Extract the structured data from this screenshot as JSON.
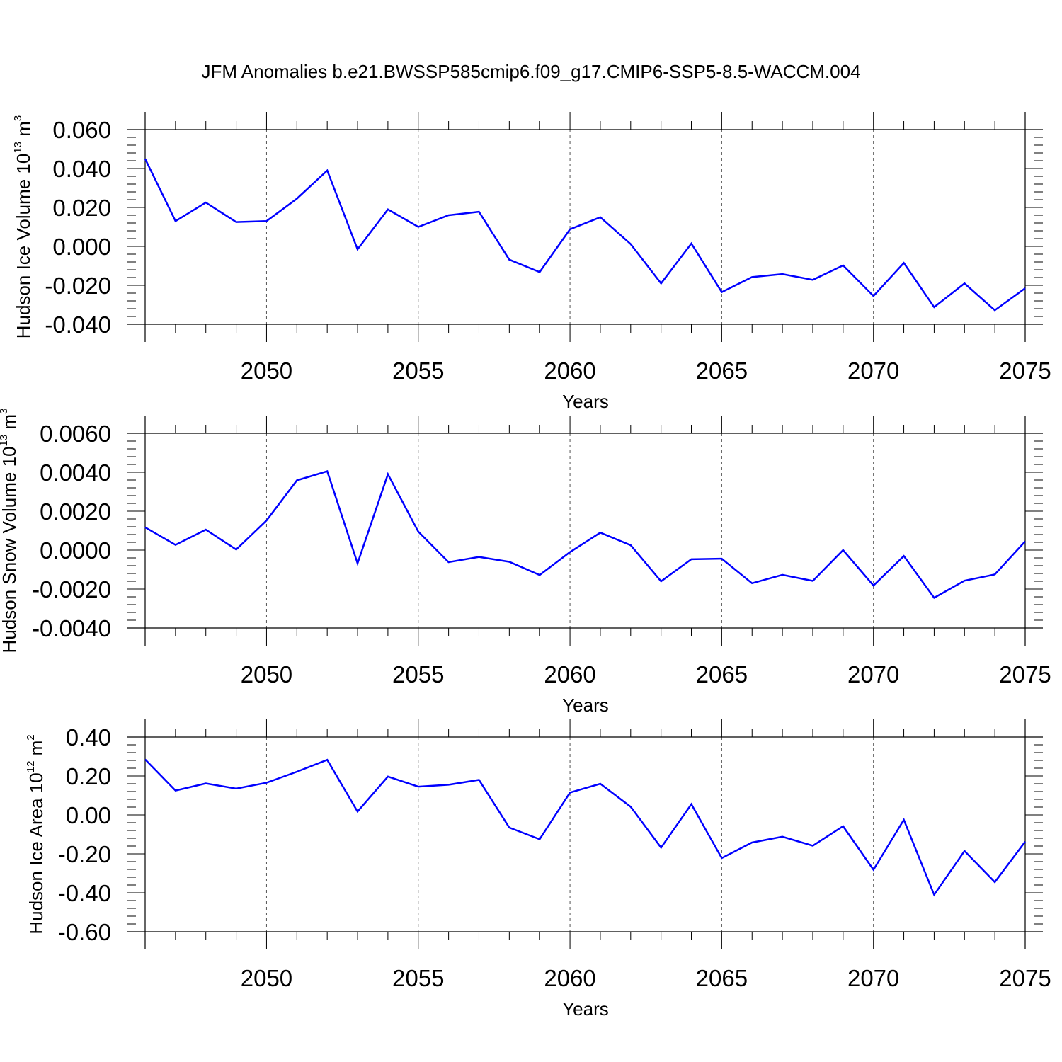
{
  "title": "JFM Anomalies b.e21.BWSSP585cmip6.f09_g17.CMIP6-SSP5-8.5-WACCM.004",
  "line_color": "#0000ff",
  "chart_data": [
    {
      "type": "line",
      "ylabel": "Hudson Ice Volume",
      "yunit_base": "10",
      "yunit_exp": "13",
      "yunit_suffix": "m",
      "yunit_suffix_exp": "3",
      "xlabel": "Years",
      "xlim": [
        2046,
        2075
      ],
      "ylim": [
        -0.04,
        0.06
      ],
      "yticks": [
        0.06,
        0.04,
        0.02,
        0.0,
        -0.02,
        -0.04
      ],
      "ytick_labels": [
        "0.060",
        "0.040",
        "0.020",
        "0.000",
        "-0.020",
        "-0.040"
      ],
      "xticks": [
        2050,
        2055,
        2060,
        2065,
        2070,
        2075
      ],
      "xtick_labels": [
        "2050",
        "2055",
        "2060",
        "2065",
        "2070",
        "2075"
      ],
      "x": [
        2046,
        2047,
        2048,
        2049,
        2050,
        2051,
        2052,
        2053,
        2054,
        2055,
        2056,
        2057,
        2058,
        2059,
        2060,
        2061,
        2062,
        2063,
        2064,
        2065,
        2066,
        2067,
        2068,
        2069,
        2070,
        2071,
        2072,
        2073,
        2074,
        2075
      ],
      "y": [
        0.045,
        0.013,
        0.0225,
        0.0125,
        0.013,
        0.0245,
        0.039,
        -0.0015,
        0.019,
        0.01,
        0.016,
        0.0178,
        -0.0068,
        -0.0132,
        0.0088,
        0.015,
        0.0012,
        -0.019,
        0.0015,
        -0.0235,
        -0.0158,
        -0.0142,
        -0.0172,
        -0.0098,
        -0.0255,
        -0.0085,
        -0.0312,
        -0.019,
        -0.0328,
        -0.0215
      ]
    },
    {
      "type": "line",
      "ylabel": "Hudson Snow Volume",
      "yunit_base": "10",
      "yunit_exp": "13",
      "yunit_suffix": "m",
      "yunit_suffix_exp": "3",
      "xlabel": "Years",
      "xlim": [
        2046,
        2075
      ],
      "ylim": [
        -0.004,
        0.006
      ],
      "yticks": [
        0.006,
        0.004,
        0.002,
        0.0,
        -0.002,
        -0.004
      ],
      "ytick_labels": [
        "0.0060",
        "0.0040",
        "0.0020",
        "0.0000",
        "-0.0020",
        "-0.0040"
      ],
      "xticks": [
        2050,
        2055,
        2060,
        2065,
        2070,
        2075
      ],
      "xtick_labels": [
        "2050",
        "2055",
        "2060",
        "2065",
        "2070",
        "2075"
      ],
      "x": [
        2046,
        2047,
        2048,
        2049,
        2050,
        2051,
        2052,
        2053,
        2054,
        2055,
        2056,
        2057,
        2058,
        2059,
        2060,
        2061,
        2062,
        2063,
        2064,
        2065,
        2066,
        2067,
        2068,
        2069,
        2070,
        2071,
        2072,
        2073,
        2074,
        2075
      ],
      "y": [
        0.00117,
        0.00027,
        0.00105,
        3e-05,
        0.00152,
        0.00358,
        0.00405,
        -0.00068,
        0.0039,
        0.00095,
        -0.00062,
        -0.00035,
        -0.0006,
        -0.00128,
        -0.0001,
        0.0009,
        0.00025,
        -0.0016,
        -0.00047,
        -0.00044,
        -0.0017,
        -0.00127,
        -0.00158,
        0.0,
        -0.00182,
        -0.0003,
        -0.00245,
        -0.00157,
        -0.00125,
        0.00045
      ]
    },
    {
      "type": "line",
      "ylabel": "Hudson Ice Area",
      "yunit_base": "10",
      "yunit_exp": "12",
      "yunit_suffix": "m",
      "yunit_suffix_exp": "2",
      "xlabel": "Years",
      "xlim": [
        2046,
        2075
      ],
      "ylim": [
        -0.6,
        0.4
      ],
      "yticks": [
        0.4,
        0.2,
        0.0,
        -0.2,
        -0.4,
        -0.6
      ],
      "ytick_labels": [
        "0.40",
        "0.20",
        "0.00",
        "-0.20",
        "-0.40",
        "-0.60"
      ],
      "xticks": [
        2050,
        2055,
        2060,
        2065,
        2070,
        2075
      ],
      "xtick_labels": [
        "2050",
        "2055",
        "2060",
        "2065",
        "2070",
        "2075"
      ],
      "x": [
        2046,
        2047,
        2048,
        2049,
        2050,
        2051,
        2052,
        2053,
        2054,
        2055,
        2056,
        2057,
        2058,
        2059,
        2060,
        2061,
        2062,
        2063,
        2064,
        2065,
        2066,
        2067,
        2068,
        2069,
        2070,
        2071,
        2072,
        2073,
        2074,
        2075
      ],
      "y": [
        0.285,
        0.125,
        0.162,
        0.135,
        0.165,
        0.222,
        0.283,
        0.017,
        0.197,
        0.145,
        0.155,
        0.18,
        -0.065,
        -0.125,
        0.115,
        0.16,
        0.042,
        -0.168,
        0.055,
        -0.222,
        -0.142,
        -0.112,
        -0.158,
        -0.058,
        -0.282,
        -0.025,
        -0.41,
        -0.185,
        -0.345,
        -0.137
      ]
    }
  ]
}
